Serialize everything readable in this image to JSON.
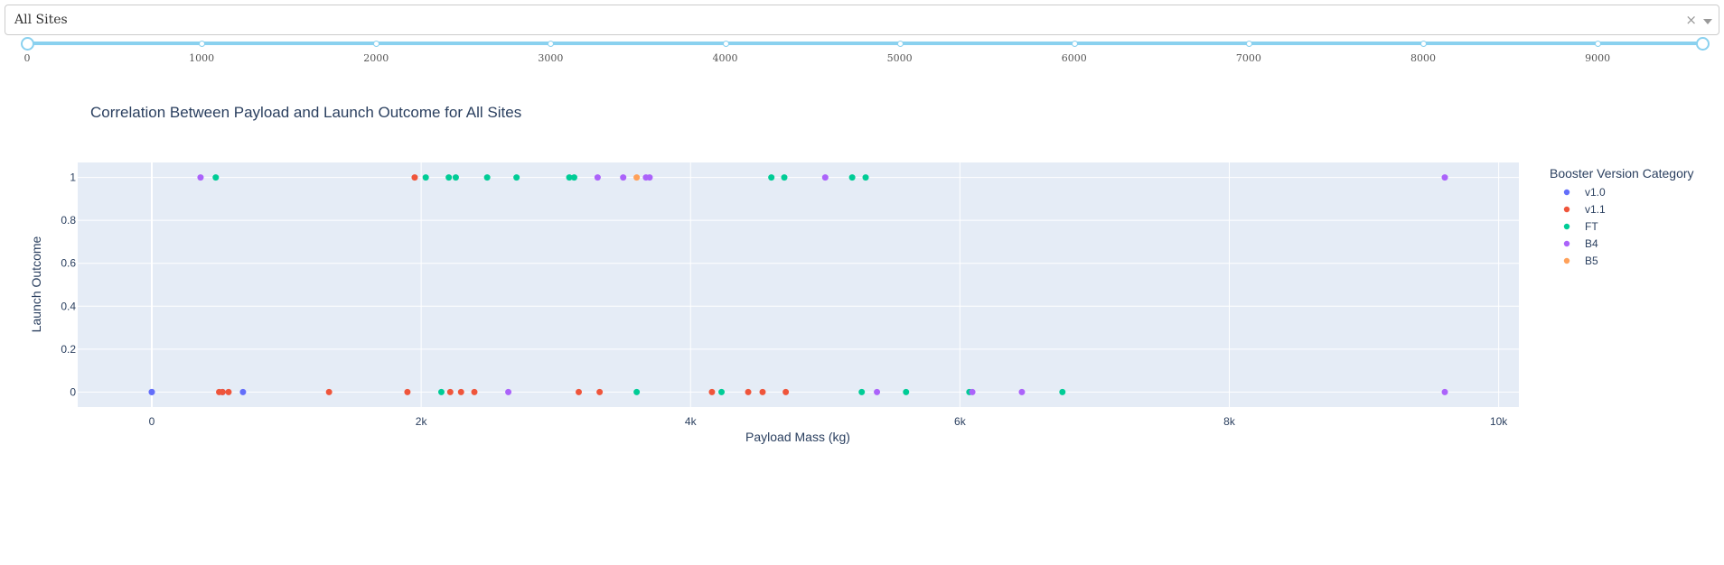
{
  "site_dropdown": {
    "value": "All Sites",
    "clear_icon": "×"
  },
  "payload_slider": {
    "min": 0,
    "max": 9600,
    "range": [
      0,
      9600
    ],
    "marks": [
      "0",
      "1000",
      "2000",
      "3000",
      "4000",
      "5000",
      "6000",
      "7000",
      "8000",
      "9000"
    ]
  },
  "chart_data": {
    "type": "scatter",
    "title": "Correlation Between Payload and Launch Outcome for All Sites",
    "xlabel": "Payload Mass (kg)",
    "ylabel": "Launch Outcome",
    "xlim": [
      -550,
      10150
    ],
    "ylim": [
      -0.07,
      1.07
    ],
    "x_ticks": [
      0,
      2000,
      4000,
      6000,
      8000,
      10000
    ],
    "x_tick_labels": [
      "0",
      "2k",
      "4k",
      "6k",
      "8k",
      "10k"
    ],
    "y_ticks": [
      0,
      0.2,
      0.4,
      0.6,
      0.8,
      1
    ],
    "y_tick_labels": [
      "0",
      "0.2",
      "0.4",
      "0.6",
      "0.8",
      "1"
    ],
    "grid": true,
    "legend_title": "Booster Version Category",
    "legend_position": "right",
    "series": [
      {
        "name": "v1.0",
        "color": "#636efa",
        "points": [
          [
            0,
            0
          ],
          [
            0,
            0
          ],
          [
            525,
            0
          ],
          [
            677,
            0
          ]
        ]
      },
      {
        "name": "v1.1",
        "color": "#ef553b",
        "points": [
          [
            500,
            0
          ],
          [
            525,
            0
          ],
          [
            570,
            0
          ],
          [
            1316,
            0
          ],
          [
            1898,
            0
          ],
          [
            1952,
            1
          ],
          [
            2216,
            0
          ],
          [
            2296,
            0
          ],
          [
            2395,
            0
          ],
          [
            3170,
            0
          ],
          [
            3325,
            0
          ],
          [
            4159,
            0
          ],
          [
            4428,
            0
          ],
          [
            4535,
            0
          ],
          [
            4707,
            0
          ]
        ]
      },
      {
        "name": "FT",
        "color": "#00cc96",
        "points": [
          [
            475,
            1
          ],
          [
            2034,
            1
          ],
          [
            2150,
            0
          ],
          [
            2205,
            1
          ],
          [
            2257,
            1
          ],
          [
            2490,
            1
          ],
          [
            2708,
            1
          ],
          [
            3100,
            1
          ],
          [
            3136,
            1
          ],
          [
            3600,
            0
          ],
          [
            4230,
            0
          ],
          [
            4600,
            1
          ],
          [
            4696,
            1
          ],
          [
            5200,
            1
          ],
          [
            5271,
            0
          ],
          [
            5300,
            1
          ],
          [
            5600,
            0
          ],
          [
            6070,
            0
          ],
          [
            6761,
            0
          ]
        ]
      },
      {
        "name": "B4",
        "color": "#ab63fa",
        "points": [
          [
            362,
            1
          ],
          [
            2647,
            0
          ],
          [
            3310,
            1
          ],
          [
            3500,
            1
          ],
          [
            3669,
            1
          ],
          [
            3696,
            1
          ],
          [
            5000,
            1
          ],
          [
            5384,
            0
          ],
          [
            6092,
            0
          ],
          [
            6460,
            0
          ],
          [
            9600,
            1
          ],
          [
            9600,
            0
          ]
        ]
      },
      {
        "name": "B5",
        "color": "#ffa15a",
        "points": [
          [
            3600,
            1
          ]
        ]
      }
    ]
  }
}
